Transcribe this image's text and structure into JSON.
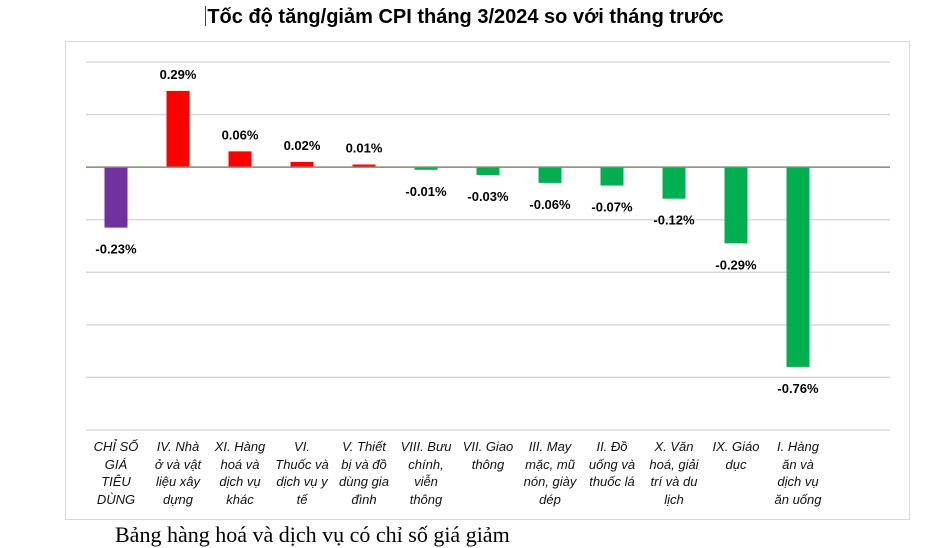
{
  "chart_data": {
    "type": "bar",
    "title": "Tốc độ tăng/giảm CPI tháng 3/2024 so với tháng trước",
    "xlabel": "",
    "ylabel": "",
    "ylim": [
      -1.0,
      0.4
    ],
    "grid": true,
    "gridline_step": 0.2,
    "legend": "none",
    "value_suffix": "%",
    "categories": [
      "CHỈ SỐ GIÁ TIÊU DÙNG",
      "IV. Nhà ở và vật liệu xây dựng",
      "XI. Hàng hoá và dịch vụ khác",
      "VI. Thuốc và dịch vụ y tế",
      "V. Thiết bị và đồ dùng gia đình",
      "VIII. Bưu chính, viễn thông",
      "VII. Giao thông",
      "III. May mặc, mũ nón, giày dép",
      "II. Đồ uống và thuốc lá",
      "X. Văn hoá, giải trí và du lịch",
      "IX. Giáo dục",
      "I. Hàng ăn và dịch vụ ăn uống"
    ],
    "category_lines": [
      [
        "CHỈ SỐ",
        "GIÁ",
        "TIÊU",
        "DÙNG"
      ],
      [
        "IV. Nhà",
        "ở và vật",
        "liệu xây",
        "dựng"
      ],
      [
        "XI. Hàng",
        "hoá và",
        "dịch vụ",
        "khác"
      ],
      [
        "VI.",
        "Thuốc và",
        "dịch vụ y",
        "tế"
      ],
      [
        "V. Thiết",
        "bị và đồ",
        "dùng gia",
        "đình"
      ],
      [
        "VIII. Bưu",
        "chính,",
        "viễn",
        "thông"
      ],
      [
        "VII. Giao",
        "thông"
      ],
      [
        "III. May",
        "mặc, mũ",
        "nón, giày",
        "dép"
      ],
      [
        "II. Đồ",
        "uống và",
        "thuốc lá"
      ],
      [
        "X. Văn",
        "hoá, giải",
        "trí và du",
        "lịch"
      ],
      [
        "IX. Giáo",
        "dục"
      ],
      [
        "I. Hàng",
        "ăn và",
        "dịch vụ",
        "ăn uống"
      ]
    ],
    "values": [
      -0.23,
      0.29,
      0.06,
      0.02,
      0.01,
      -0.01,
      -0.03,
      -0.06,
      -0.07,
      -0.12,
      -0.29,
      -0.76
    ],
    "data_labels": [
      "-0.23%",
      "0.29%",
      "0.06%",
      "0.02%",
      "0.01%",
      "-0.01%",
      "-0.03%",
      "-0.06%",
      "-0.07%",
      "-0.12%",
      "-0.29%",
      "-0.76%"
    ],
    "colors": {
      "total": "#7030a0",
      "positive": "#ff0000",
      "negative": "#00b050",
      "zero_line": "#8c8468",
      "grid": "#d9d9d9"
    }
  },
  "caption_partial": "Bảng hàng hoá và dịch vụ có chỉ số giá giảm"
}
